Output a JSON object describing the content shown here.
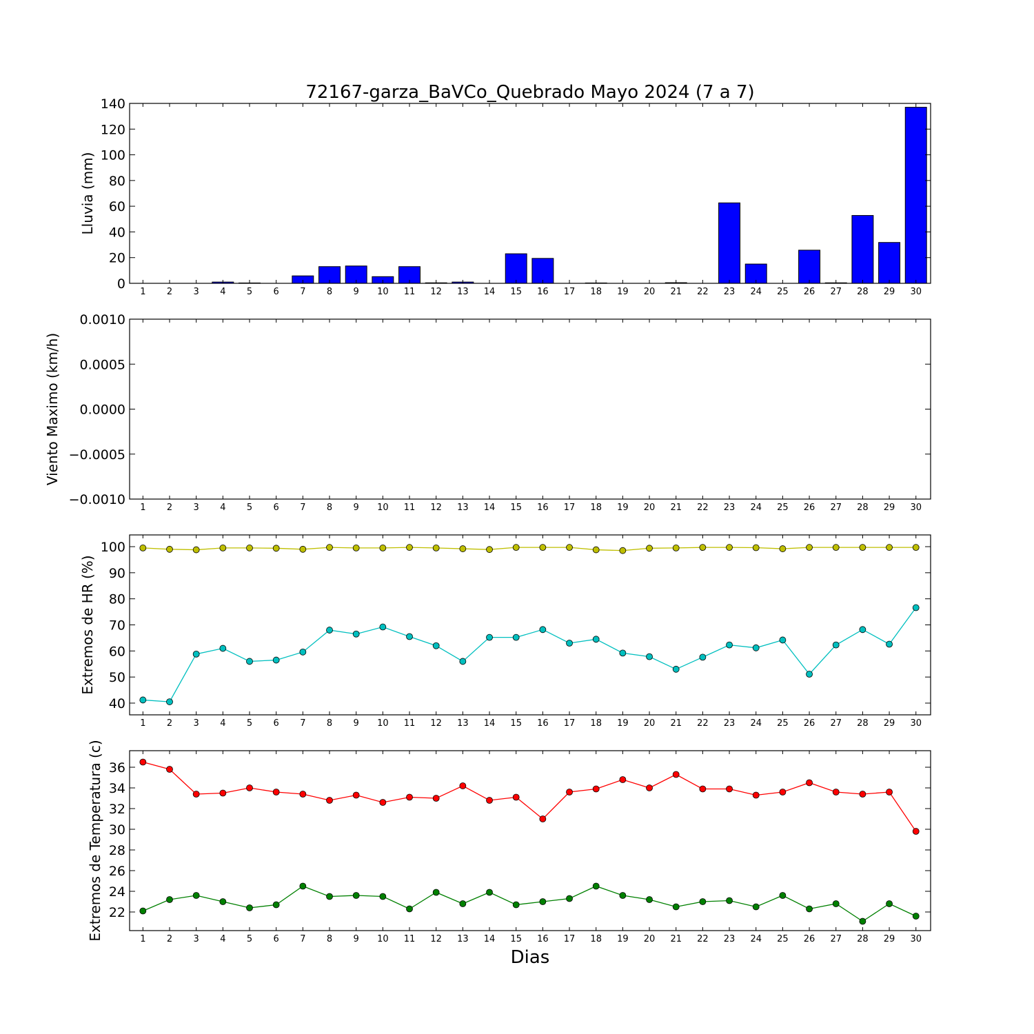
{
  "title": "72167-garza_BaVCo_Quebrado Mayo 2024  (7 a 7)",
  "xlabel": "Dias",
  "chart_data": [
    {
      "type": "bar",
      "ylabel": "Lluvia (mm)",
      "ylim": [
        0,
        140
      ],
      "yticks": [
        "0",
        "20",
        "40",
        "60",
        "80",
        "100",
        "120",
        "140"
      ],
      "categories": [
        "1",
        "2",
        "3",
        "4",
        "5",
        "6",
        "7",
        "8",
        "9",
        "10",
        "11",
        "12",
        "13",
        "14",
        "15",
        "16",
        "17",
        "18",
        "19",
        "20",
        "21",
        "22",
        "23",
        "24",
        "25",
        "26",
        "27",
        "28",
        "29",
        "30"
      ],
      "series": [
        {
          "color": "#0000ff",
          "values": [
            0,
            0,
            0,
            1,
            0.3,
            0,
            5.8,
            13,
            13.5,
            5.2,
            13,
            0.4,
            1,
            0,
            23,
            19.4,
            0,
            0.3,
            0,
            0,
            0.5,
            0,
            62.6,
            15,
            0,
            25.8,
            0.4,
            52.8,
            31.8,
            137
          ]
        }
      ]
    },
    {
      "type": "line",
      "ylabel": "Viento Maximo (km/h)",
      "ylim": [
        -0.001,
        0.001
      ],
      "yticks": [
        "0.0010",
        "0.0005",
        "0.0000",
        "−0.0005",
        "−0.0010"
      ],
      "categories": [
        "1",
        "2",
        "3",
        "4",
        "5",
        "6",
        "7",
        "8",
        "9",
        "10",
        "11",
        "12",
        "13",
        "14",
        "15",
        "16",
        "17",
        "18",
        "19",
        "20",
        "21",
        "22",
        "23",
        "24",
        "25",
        "26",
        "27",
        "28",
        "29",
        "30"
      ],
      "series": []
    },
    {
      "type": "line",
      "ylabel": "Extremos de HR (%)",
      "ylim": [
        35.5,
        104.5
      ],
      "yticks": [
        "40",
        "50",
        "60",
        "70",
        "80",
        "90",
        "100"
      ],
      "categories": [
        "1",
        "2",
        "3",
        "4",
        "5",
        "6",
        "7",
        "8",
        "9",
        "10",
        "11",
        "12",
        "13",
        "14",
        "15",
        "16",
        "17",
        "18",
        "19",
        "20",
        "21",
        "22",
        "23",
        "24",
        "25",
        "26",
        "27",
        "28",
        "29",
        "30"
      ],
      "series": [
        {
          "color": "#bfbf00",
          "values": [
            99.5,
            99.0,
            98.8,
            99.5,
            99.5,
            99.4,
            99.0,
            99.7,
            99.5,
            99.5,
            99.7,
            99.5,
            99.2,
            98.9,
            99.7,
            99.7,
            99.7,
            98.8,
            98.5,
            99.4,
            99.5,
            99.7,
            99.7,
            99.6,
            99.2,
            99.7,
            99.7,
            99.7,
            99.7,
            99.7
          ]
        },
        {
          "color": "#00bfbf",
          "values": [
            41.2,
            40.5,
            58.8,
            61.0,
            56.0,
            56.5,
            59.6,
            68.0,
            66.5,
            69.2,
            65.5,
            62.0,
            56.0,
            65.2,
            65.2,
            68.2,
            63.0,
            64.5,
            59.2,
            57.8,
            53.0,
            57.6,
            62.3,
            61.2,
            64.2,
            51.1,
            62.3,
            68.2,
            62.6,
            76.6
          ]
        }
      ]
    },
    {
      "type": "line",
      "ylabel": "Extremos de Temperatura (c)",
      "ylim": [
        20.2,
        37.6
      ],
      "yticks": [
        "22",
        "24",
        "26",
        "28",
        "30",
        "32",
        "34",
        "36"
      ],
      "categories": [
        "1",
        "2",
        "3",
        "4",
        "5",
        "6",
        "7",
        "8",
        "9",
        "10",
        "11",
        "12",
        "13",
        "14",
        "15",
        "16",
        "17",
        "18",
        "19",
        "20",
        "21",
        "22",
        "23",
        "24",
        "25",
        "26",
        "27",
        "28",
        "29",
        "30"
      ],
      "series": [
        {
          "color": "#ff0000",
          "values": [
            36.5,
            35.8,
            33.4,
            33.5,
            34.0,
            33.6,
            33.4,
            32.8,
            33.3,
            32.6,
            33.1,
            33.0,
            34.2,
            32.8,
            33.1,
            31.0,
            33.6,
            33.9,
            34.8,
            34.0,
            35.3,
            33.9,
            33.9,
            33.3,
            33.6,
            34.5,
            33.6,
            33.4,
            33.6,
            29.8
          ]
        },
        {
          "color": "#008000",
          "values": [
            22.1,
            23.2,
            23.6,
            23.0,
            22.4,
            22.7,
            24.5,
            23.5,
            23.6,
            23.5,
            22.3,
            23.9,
            22.8,
            23.9,
            22.7,
            23.0,
            23.3,
            24.5,
            23.6,
            23.2,
            22.5,
            23.0,
            23.1,
            22.5,
            23.6,
            22.3,
            22.8,
            21.1,
            22.8,
            21.6
          ]
        }
      ]
    }
  ]
}
